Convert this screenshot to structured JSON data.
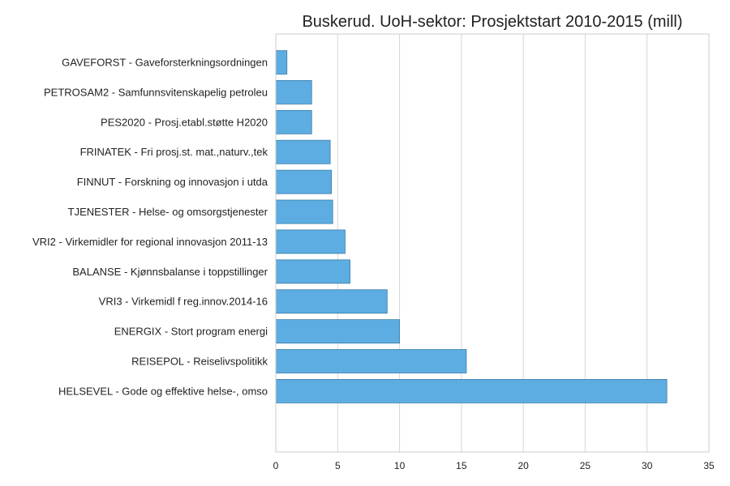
{
  "chart_data": {
    "type": "bar",
    "orientation": "horizontal",
    "title": "Buskerud. UoH-sektor: Prosjektstart 2010-2015 (mill)",
    "xlabel": "",
    "ylabel": "",
    "xlim": [
      0,
      35
    ],
    "xticks": [
      0,
      5,
      10,
      15,
      20,
      25,
      30,
      35
    ],
    "grid": "vertical",
    "bar_color": "#5dade2",
    "bar_edge_color": "#3a7ca5",
    "categories": [
      "GAVEFORST - Gaveforsterkningsordningen",
      "PETROSAM2 - Samfunnsvitenskapelig petroleu",
      "PES2020 - Prosj.etabl.støtte H2020",
      "FRINATEK - Fri prosj.st. mat.,naturv.,tek",
      "FINNUT - Forskning og innovasjon i utda",
      "TJENESTER - Helse- og omsorgstjenester",
      "VRI2 - Virkemidler for regional innovasjon 2011-13",
      "BALANSE - Kjønnsbalanse i toppstillinger",
      "VRI3 - Virkemidl f reg.innov.2014-16",
      "ENERGIX - Stort program energi",
      "REISEPOL - Reiselivspolitikk",
      "HELSEVEL - Gode og effektive helse-, omso"
    ],
    "values": [
      0.9,
      2.9,
      2.9,
      4.4,
      4.5,
      4.6,
      5.6,
      6.0,
      9.0,
      10.0,
      15.4,
      31.6
    ]
  }
}
